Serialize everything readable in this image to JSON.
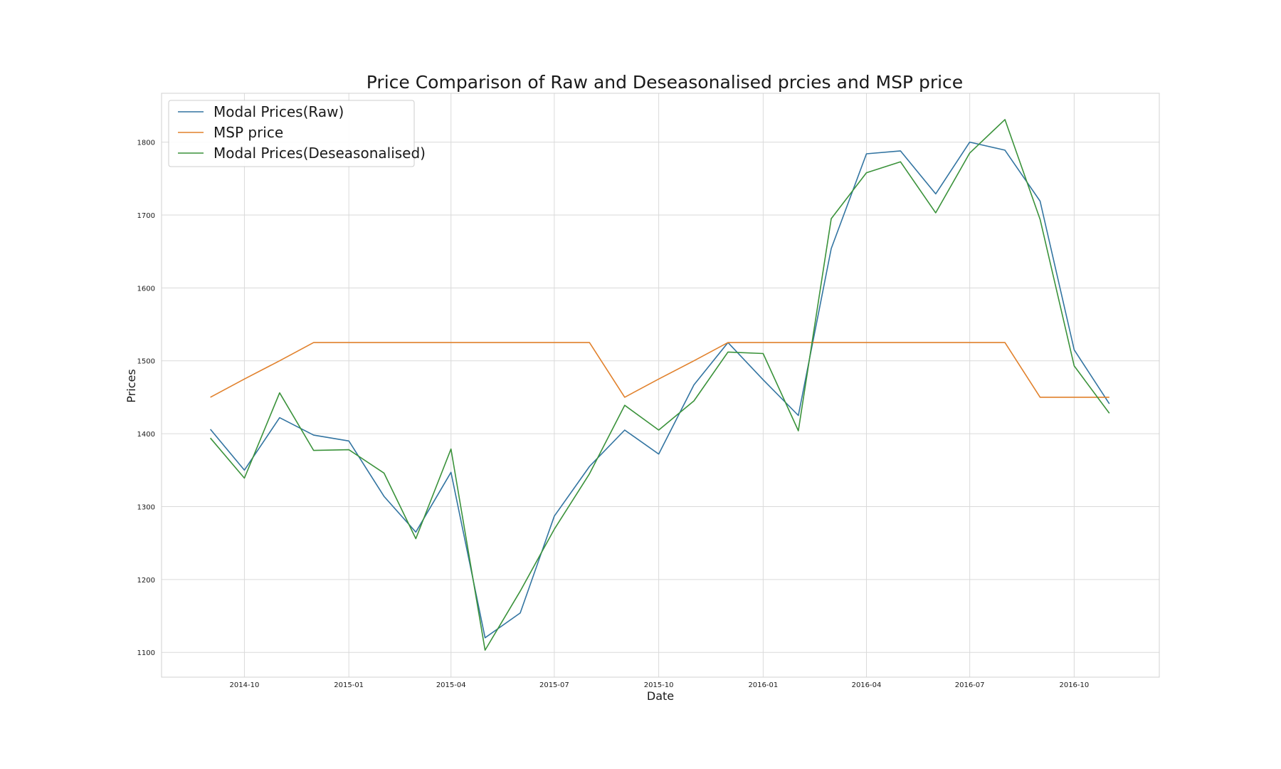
{
  "chart_data": {
    "type": "line",
    "title": "Price Comparison of Raw and Deseasonalised prcies and MSP price",
    "xlabel": "Date",
    "ylabel": "Prices",
    "x_ticks": [
      "2014-10",
      "2015-01",
      "2015-04",
      "2015-07",
      "2015-10",
      "2016-01",
      "2016-04",
      "2016-07",
      "2016-10"
    ],
    "y_ticks": [
      "1100",
      "1200",
      "1300",
      "1400",
      "1500",
      "1600",
      "1700",
      "1800"
    ],
    "xlim": [
      "2014-07-20",
      "2016-12-15"
    ],
    "ylim": [
      1066,
      1867
    ],
    "grid": true,
    "legend_position": "top-left",
    "x": [
      "2014-09-01",
      "2014-10-01",
      "2014-11-01",
      "2014-12-01",
      "2015-01-01",
      "2015-02-01",
      "2015-03-01",
      "2015-04-01",
      "2015-05-01",
      "2015-06-01",
      "2015-07-01",
      "2015-08-01",
      "2015-09-01",
      "2015-10-01",
      "2015-11-01",
      "2015-12-01",
      "2016-01-01",
      "2016-02-01",
      "2016-03-01",
      "2016-04-01",
      "2016-05-01",
      "2016-06-01",
      "2016-07-01",
      "2016-08-01",
      "2016-09-01",
      "2016-10-01",
      "2016-11-01"
    ],
    "series": [
      {
        "name": "Modal Prices(Raw)",
        "color": "#3274a1",
        "values": [
          1406,
          1350,
          1422,
          1398,
          1390,
          1314,
          1265,
          1347,
          1120,
          1154,
          1287,
          1355,
          1405,
          1372,
          1467,
          1525,
          1474,
          1425,
          1654,
          1784,
          1788,
          1729,
          1800,
          1789,
          1719,
          1515,
          1441
        ]
      },
      {
        "name": "MSP price",
        "color": "#e1812c",
        "values": [
          1450,
          1475,
          1500,
          1525,
          1525,
          1525,
          1525,
          1525,
          1525,
          1525,
          1525,
          1525,
          1450,
          1475,
          1500,
          1525,
          1525,
          1525,
          1525,
          1525,
          1525,
          1525,
          1525,
          1525,
          1450,
          1450,
          1450
        ]
      },
      {
        "name": "Modal Prices(Deseasonalised)",
        "color": "#3a923a",
        "values": [
          1394,
          1339,
          1456,
          1377,
          1378,
          1346,
          1256,
          1379,
          1103,
          1184,
          1269,
          1345,
          1439,
          1405,
          1445,
          1512,
          1510,
          1404,
          1695,
          1758,
          1773,
          1703,
          1785,
          1831,
          1694,
          1493,
          1428
        ]
      }
    ]
  }
}
